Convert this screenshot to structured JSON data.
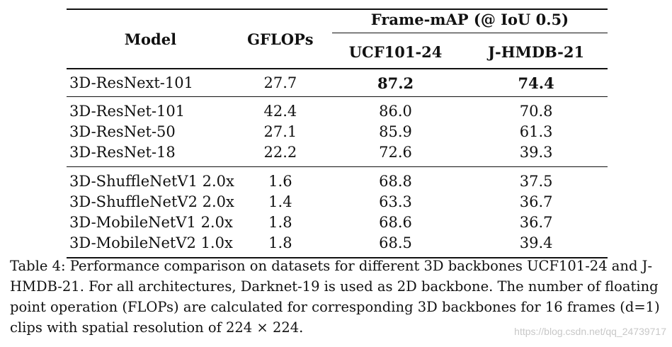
{
  "table": {
    "headers": {
      "model": "Model",
      "gflops": "GFLOPs",
      "frame_map": "Frame-mAP (@ IoU 0.5)",
      "ucf": "UCF101-24",
      "jhmdb": "J-HMDB-21"
    },
    "groups": [
      {
        "rows": [
          {
            "model": "3D-ResNext-101",
            "gflops": "27.7",
            "ucf": "87.2",
            "jhmdb": "74.4"
          }
        ]
      },
      {
        "rows": [
          {
            "model": "3D-ResNet-101",
            "gflops": "42.4",
            "ucf": "86.0",
            "jhmdb": "70.8"
          },
          {
            "model": "3D-ResNet-50",
            "gflops": "27.1",
            "ucf": "85.9",
            "jhmdb": "61.3"
          },
          {
            "model": "3D-ResNet-18",
            "gflops": "22.2",
            "ucf": "72.6",
            "jhmdb": "39.3"
          }
        ]
      },
      {
        "rows": [
          {
            "model": "3D-ShuffleNetV1 2.0x",
            "gflops": "1.6",
            "ucf": "68.8",
            "jhmdb": "37.5"
          },
          {
            "model": "3D-ShuffleNetV2 2.0x",
            "gflops": "1.4",
            "ucf": "63.3",
            "jhmdb": "36.7"
          },
          {
            "model": "3D-MobileNetV1 2.0x",
            "gflops": "1.8",
            "ucf": "68.6",
            "jhmdb": "36.7"
          },
          {
            "model": "3D-MobileNetV2 1.0x",
            "gflops": "1.8",
            "ucf": "68.5",
            "jhmdb": "39.4"
          }
        ]
      }
    ]
  },
  "caption": "Table 4: Performance comparison on datasets for different 3D backbones UCF101-24 and J-HMDB-21. For all architectures, Darknet-19 is used as 2D backbone. The number of floating point operation (FLOPs) are calculated for corresponding 3D backbones for 16 frames (d=1) clips with spatial resolution of 224 × 224.",
  "watermark": "https://blog.csdn.net/qq_24739717"
}
